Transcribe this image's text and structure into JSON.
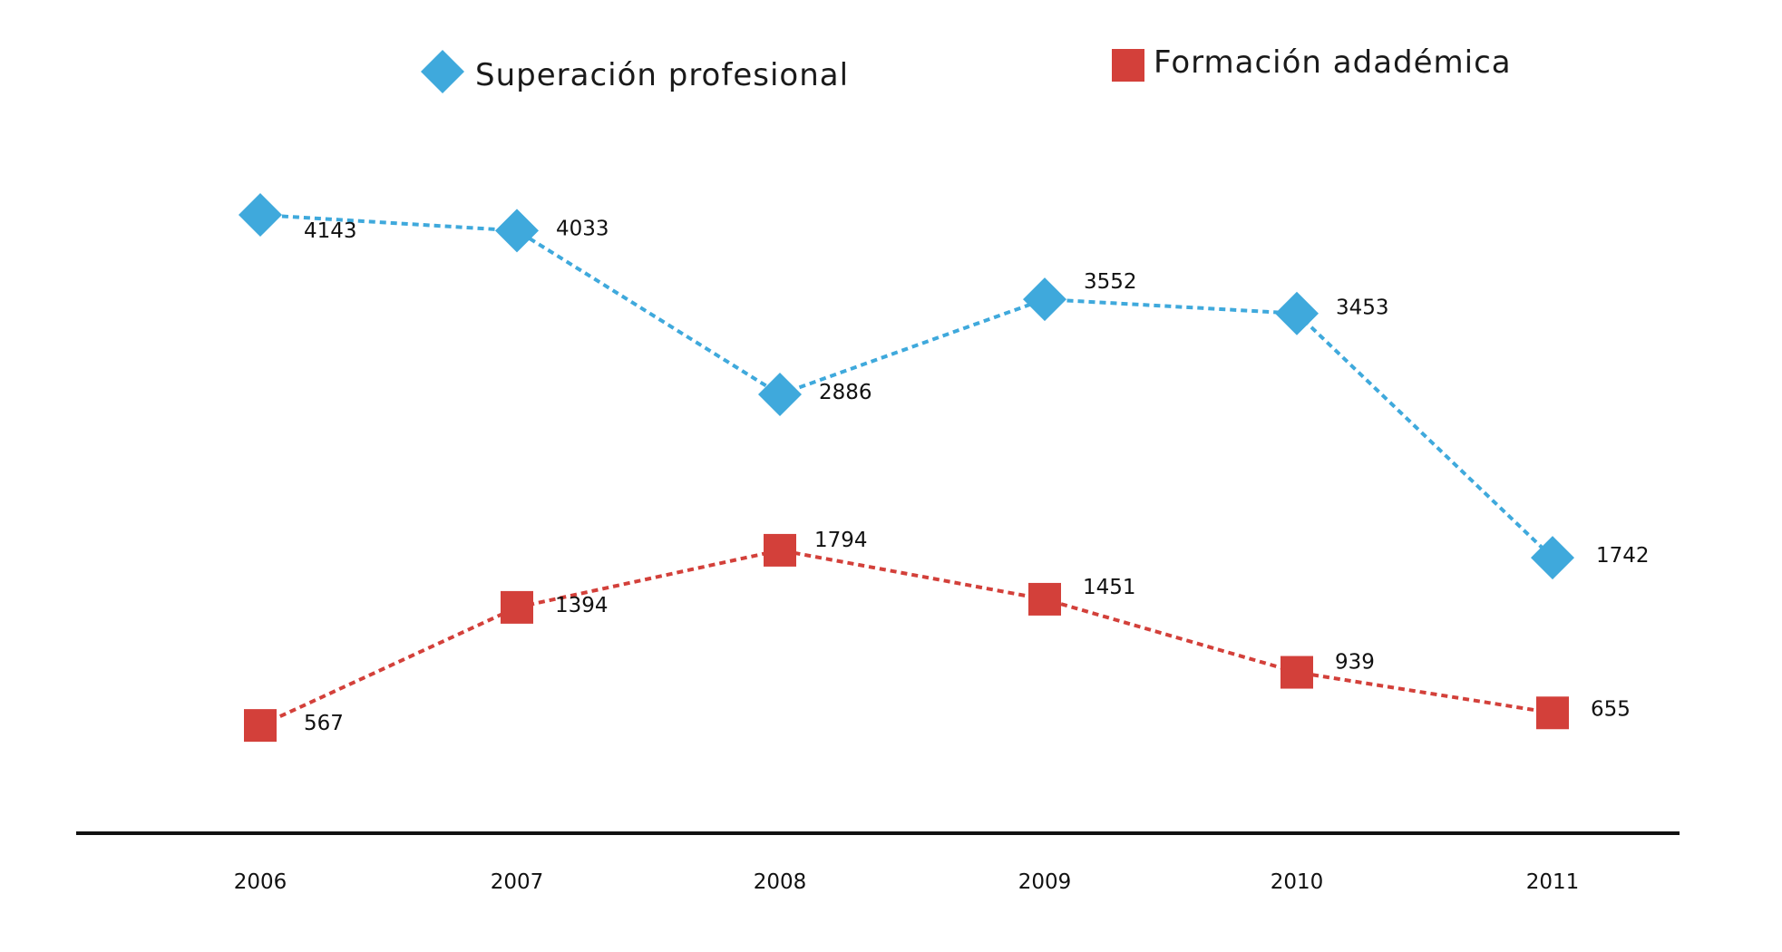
{
  "chart_data": {
    "type": "line",
    "title": "",
    "xlabel": "",
    "ylabel": "",
    "categories": [
      "2006",
      "2007",
      "2008",
      "2009",
      "2010",
      "2011"
    ],
    "ylim": [
      0,
      4500
    ],
    "grid": false,
    "legend_placement": "top",
    "series": [
      {
        "name": "Superación profesional",
        "values": [
          4143,
          4033,
          2886,
          3552,
          3453,
          1742
        ],
        "color": "#3fa9dc",
        "marker": "diamond",
        "line_style": "dotted"
      },
      {
        "name": "Formación adadémica",
        "values": [
          567,
          1394,
          1794,
          1451,
          939,
          655
        ],
        "color": "#d3403a",
        "marker": "square",
        "line_style": "dotted"
      }
    ]
  },
  "colors": {
    "axis": "#111111",
    "background": "#ffffff"
  }
}
